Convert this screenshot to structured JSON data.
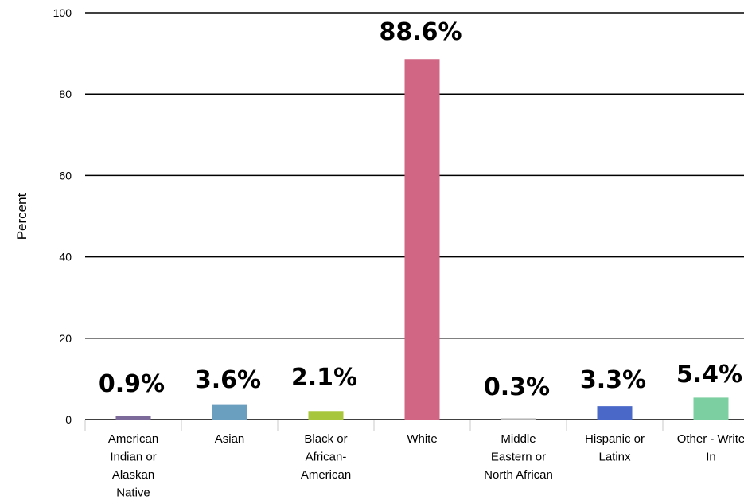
{
  "chart_data": {
    "type": "bar",
    "categories": [
      [
        "American",
        "Indian or",
        "Alaskan",
        "Native"
      ],
      [
        "Asian"
      ],
      [
        "Black or",
        "African-",
        "American"
      ],
      [
        "White"
      ],
      [
        "Middle",
        "Eastern or",
        "North African"
      ],
      [
        "Hispanic or",
        "Latinx"
      ],
      [
        "Other - Write",
        "In"
      ]
    ],
    "values": [
      0.9,
      3.6,
      2.1,
      88.6,
      0.3,
      3.3,
      5.4
    ],
    "data_labels": [
      "0.9%",
      "3.6%",
      "2.1%",
      "88.6%",
      "0.3%",
      "3.3%",
      "5.4%"
    ],
    "colors": [
      "#7b6a9a",
      "#6a9fc0",
      "#a8c63c",
      "#d06683",
      "#b4b4b4",
      "#4a68c8",
      "#7ccfa0"
    ],
    "title": "",
    "xlabel": "",
    "ylabel": "Percent",
    "ylim": [
      0,
      100
    ],
    "yticks": [
      0,
      20,
      40,
      60,
      80,
      100
    ],
    "grid": true,
    "legend": "none"
  }
}
